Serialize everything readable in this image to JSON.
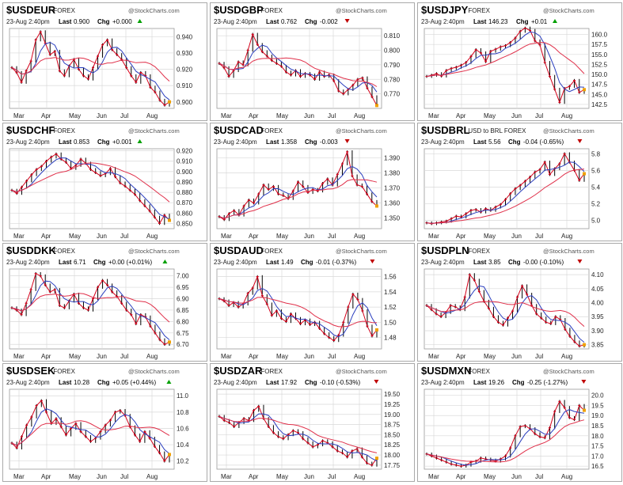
{
  "colors": {
    "price": "#d4001a",
    "ma_blue": "#2b3fbf",
    "ma_red": "#e0304a",
    "grid": "#d9d9d9",
    "tag_up": "#00a000",
    "tag_down": "#c00000",
    "ink": "#000000"
  },
  "watermark": "@StockCharts.com",
  "panels": [
    {
      "title": "$USDEUR",
      "subtitle": "FOREX",
      "date": "23-Aug 2:40pm",
      "last_label": "Last",
      "last": "0.900",
      "chg_label": "Chg",
      "chg": "+0.000",
      "dir": "up",
      "y_ticks": [
        "0.940",
        "0.930",
        "0.920",
        "0.910",
        "0.900"
      ],
      "x_ticks": [
        "Mar",
        "Apr",
        "May",
        "Jun",
        "Jul",
        "Aug"
      ],
      "chart_data": {
        "type": "line",
        "ylim": [
          0.896,
          0.945
        ],
        "values": [
          0.921,
          0.918,
          0.912,
          0.919,
          0.925,
          0.938,
          0.943,
          0.936,
          0.929,
          0.931,
          0.919,
          0.916,
          0.922,
          0.926,
          0.92,
          0.916,
          0.914,
          0.921,
          0.928,
          0.935,
          0.938,
          0.932,
          0.929,
          0.926,
          0.921,
          0.916,
          0.912,
          0.918,
          0.916,
          0.909,
          0.906,
          0.901,
          0.898,
          0.9
        ]
      }
    },
    {
      "title": "$USDGBP",
      "subtitle": "FOREX",
      "date": "23-Aug 2:40pm",
      "last_label": "Last",
      "last": "0.762",
      "chg_label": "Chg",
      "chg": "-0.002",
      "dir": "down",
      "y_ticks": [
        "0.810",
        "0.800",
        "0.790",
        "0.780",
        "0.770"
      ],
      "x_ticks": [
        "Mar",
        "Apr",
        "May",
        "Jun",
        "Jul",
        "Aug"
      ],
      "chart_data": {
        "type": "line",
        "ylim": [
          0.76,
          0.815
        ],
        "values": [
          0.791,
          0.788,
          0.782,
          0.786,
          0.792,
          0.79,
          0.8,
          0.811,
          0.804,
          0.799,
          0.796,
          0.793,
          0.791,
          0.789,
          0.785,
          0.783,
          0.786,
          0.782,
          0.784,
          0.783,
          0.78,
          0.785,
          0.782,
          0.783,
          0.779,
          0.772,
          0.77,
          0.773,
          0.776,
          0.78,
          0.781,
          0.774,
          0.768,
          0.762
        ]
      }
    },
    {
      "title": "$USDJPY",
      "subtitle": "FOREX",
      "date": "23-Aug 2:40pm",
      "last_label": "Last",
      "last": "146.23",
      "chg_label": "Chg",
      "chg": "+0.01",
      "dir": "up",
      "y_ticks": [
        "160.0",
        "157.5",
        "155.0",
        "152.5",
        "150.0",
        "147.5",
        "145.0",
        "142.5"
      ],
      "x_ticks": [
        "Mar",
        "Apr",
        "May",
        "Jun",
        "Jul",
        "Aug"
      ],
      "chart_data": {
        "type": "line",
        "ylim": [
          141.5,
          161.5
        ],
        "values": [
          149.5,
          149.8,
          150.2,
          149.6,
          151.0,
          151.5,
          151.8,
          152.3,
          153.0,
          154.5,
          156.2,
          155.4,
          153.2,
          155.8,
          156.3,
          156.9,
          157.2,
          158.0,
          159.1,
          160.8,
          161.6,
          161.0,
          158.4,
          157.4,
          153.0,
          149.5,
          146.3,
          143.0,
          146.5,
          147.0,
          148.5,
          145.5,
          146.2
        ]
      }
    },
    {
      "title": "$USDCHF",
      "subtitle": "FOREX",
      "date": "23-Aug 2:40pm",
      "last_label": "Last",
      "last": "0.853",
      "chg_label": "Chg",
      "chg": "+0.001",
      "dir": "up",
      "y_ticks": [
        "0.920",
        "0.910",
        "0.900",
        "0.890",
        "0.880",
        "0.870",
        "0.860",
        "0.850"
      ],
      "x_ticks": [
        "Mar",
        "Apr",
        "May",
        "Jun",
        "Jul",
        "Aug"
      ],
      "chart_data": {
        "type": "line",
        "ylim": [
          0.845,
          0.922
        ],
        "values": [
          0.882,
          0.879,
          0.885,
          0.891,
          0.897,
          0.902,
          0.905,
          0.91,
          0.914,
          0.917,
          0.912,
          0.909,
          0.903,
          0.906,
          0.912,
          0.908,
          0.902,
          0.899,
          0.896,
          0.898,
          0.903,
          0.895,
          0.889,
          0.886,
          0.882,
          0.878,
          0.872,
          0.867,
          0.862,
          0.856,
          0.85,
          0.858,
          0.853
        ]
      }
    },
    {
      "title": "$USDCAD",
      "subtitle": "FOREX",
      "date": "23-Aug 2:40pm",
      "last_label": "Last",
      "last": "1.358",
      "chg_label": "Chg",
      "chg": "-0.003",
      "dir": "down",
      "y_ticks": [
        "1.390",
        "1.380",
        "1.370",
        "1.360",
        "1.350"
      ],
      "x_ticks": [
        "Mar",
        "Apr",
        "May",
        "Jun",
        "Jul",
        "Aug"
      ],
      "chart_data": {
        "type": "line",
        "ylim": [
          1.343,
          1.396
        ],
        "values": [
          1.351,
          1.349,
          1.353,
          1.355,
          1.352,
          1.358,
          1.362,
          1.36,
          1.366,
          1.372,
          1.369,
          1.371,
          1.366,
          1.365,
          1.363,
          1.368,
          1.374,
          1.371,
          1.367,
          1.369,
          1.368,
          1.373,
          1.376,
          1.372,
          1.379,
          1.386,
          1.394,
          1.378,
          1.372,
          1.371,
          1.366,
          1.361,
          1.358
        ]
      }
    },
    {
      "title": "$USDBRL",
      "subtitle": "USD to BRL FOREX",
      "date": "23-Aug 2:40pm",
      "last_label": "Last",
      "last": "5.56",
      "chg_label": "Chg",
      "chg": "-0.04 (-0.65%)",
      "dir": "down",
      "y_ticks": [
        "5.8",
        "5.6",
        "5.4",
        "5.2",
        "5.0"
      ],
      "x_ticks": [
        "Mar",
        "Apr",
        "May",
        "Jun",
        "Jul",
        "Aug"
      ],
      "chart_data": {
        "type": "line",
        "ylim": [
          4.9,
          5.86
        ],
        "values": [
          4.97,
          4.96,
          4.97,
          4.98,
          4.99,
          5.02,
          5.05,
          5.04,
          5.08,
          5.12,
          5.13,
          5.1,
          5.14,
          5.12,
          5.16,
          5.19,
          5.25,
          5.32,
          5.38,
          5.42,
          5.47,
          5.52,
          5.58,
          5.61,
          5.7,
          5.55,
          5.62,
          5.68,
          5.8,
          5.7,
          5.6,
          5.48,
          5.56
        ]
      }
    },
    {
      "title": "$USDDKK",
      "subtitle": "FOREX",
      "date": "23-Aug 2:40pm",
      "last_label": "Last",
      "last": "6.71",
      "chg_label": "Chg",
      "chg": "+0.00 (+0.01%)",
      "dir": "up",
      "y_ticks": [
        "7.00",
        "6.95",
        "6.90",
        "6.85",
        "6.80",
        "6.75",
        "6.70"
      ],
      "x_ticks": [
        "Mar",
        "Apr",
        "May",
        "Jun",
        "Jul",
        "Aug"
      ],
      "chart_data": {
        "type": "line",
        "ylim": [
          6.68,
          7.03
        ],
        "values": [
          6.86,
          6.85,
          6.83,
          6.88,
          6.94,
          7.01,
          7.0,
          6.96,
          6.93,
          6.94,
          6.87,
          6.86,
          6.89,
          6.92,
          6.88,
          6.86,
          6.85,
          6.9,
          6.95,
          6.98,
          6.96,
          6.93,
          6.91,
          6.88,
          6.85,
          6.83,
          6.79,
          6.83,
          6.82,
          6.78,
          6.75,
          6.72,
          6.7,
          6.71
        ]
      }
    },
    {
      "title": "$USDAUD",
      "subtitle": "FOREX",
      "date": "23-Aug 2:40pm",
      "last_label": "Last",
      "last": "1.49",
      "chg_label": "Chg",
      "chg": "-0.01 (-0.37%)",
      "dir": "down",
      "y_ticks": [
        "1.56",
        "1.54",
        "1.52",
        "1.50",
        "1.48"
      ],
      "x_ticks": [
        "Mar",
        "Apr",
        "May",
        "Jun",
        "Jul",
        "Aug"
      ],
      "chart_data": {
        "type": "line",
        "ylim": [
          1.465,
          1.57
        ],
        "values": [
          1.531,
          1.528,
          1.522,
          1.526,
          1.52,
          1.524,
          1.538,
          1.545,
          1.56,
          1.535,
          1.524,
          1.509,
          1.515,
          1.505,
          1.501,
          1.511,
          1.505,
          1.498,
          1.503,
          1.497,
          1.5,
          1.492,
          1.485,
          1.48,
          1.476,
          1.483,
          1.5,
          1.52,
          1.537,
          1.53,
          1.515,
          1.495,
          1.482,
          1.49
        ]
      }
    },
    {
      "title": "$USDPLN",
      "subtitle": "FOREX",
      "date": "23-Aug 2:40pm",
      "last_label": "Last",
      "last": "3.85",
      "chg_label": "Chg",
      "chg": "-0.00 (-0.10%)",
      "dir": "down",
      "y_ticks": [
        "4.10",
        "4.05",
        "4.00",
        "3.95",
        "3.90",
        "3.85"
      ],
      "x_ticks": [
        "Mar",
        "Apr",
        "May",
        "Jun",
        "Jul",
        "Aug"
      ],
      "chart_data": {
        "type": "line",
        "ylim": [
          3.835,
          4.12
        ],
        "values": [
          3.99,
          3.975,
          3.96,
          3.95,
          3.965,
          3.99,
          3.985,
          3.975,
          4.02,
          4.1,
          4.08,
          4.04,
          4.005,
          3.98,
          3.95,
          3.93,
          3.92,
          3.945,
          3.97,
          4.02,
          4.06,
          4.03,
          3.99,
          3.96,
          3.945,
          3.93,
          3.925,
          3.95,
          3.94,
          3.905,
          3.88,
          3.86,
          3.845,
          3.85
        ]
      }
    },
    {
      "title": "$USDSEK",
      "subtitle": "FOREX",
      "date": "23-Aug 2:40pm",
      "last_label": "Last",
      "last": "10.28",
      "chg_label": "Chg",
      "chg": "+0.05 (+0.44%)",
      "dir": "up",
      "y_ticks": [
        "11.0",
        "10.8",
        "10.6",
        "10.4",
        "10.2"
      ],
      "x_ticks": [
        "Mar",
        "Apr",
        "May",
        "Jun",
        "Jul",
        "Aug"
      ],
      "chart_data": {
        "type": "line",
        "ylim": [
          10.1,
          11.08
        ],
        "values": [
          10.42,
          10.36,
          10.5,
          10.64,
          10.74,
          10.88,
          10.94,
          10.8,
          10.66,
          10.72,
          10.62,
          10.52,
          10.6,
          10.66,
          10.56,
          10.5,
          10.44,
          10.48,
          10.56,
          10.64,
          10.7,
          10.8,
          10.82,
          10.76,
          10.62,
          10.52,
          10.44,
          10.56,
          10.48,
          10.38,
          10.3,
          10.2,
          10.28
        ]
      }
    },
    {
      "title": "$USDZAR",
      "subtitle": "FOREX",
      "date": "23-Aug 2:40pm",
      "last_label": "Last",
      "last": "17.92",
      "chg_label": "Chg",
      "chg": "-0.10 (-0.53%)",
      "dir": "down",
      "y_ticks": [
        "19.50",
        "19.25",
        "19.00",
        "18.75",
        "18.50",
        "18.25",
        "18.00",
        "17.75"
      ],
      "x_ticks": [
        "Mar",
        "Apr",
        "May",
        "Jun",
        "Jul",
        "Aug"
      ],
      "chart_data": {
        "type": "line",
        "ylim": [
          17.65,
          19.62
        ],
        "values": [
          18.95,
          18.85,
          18.8,
          18.7,
          18.8,
          18.9,
          18.85,
          19.1,
          19.2,
          18.9,
          18.7,
          18.55,
          18.45,
          18.4,
          18.5,
          18.6,
          18.55,
          18.4,
          18.3,
          18.2,
          18.25,
          18.35,
          18.3,
          18.2,
          18.1,
          18.05,
          17.95,
          18.1,
          18.15,
          17.95,
          17.8,
          17.75,
          17.92
        ]
      }
    },
    {
      "title": "$USDMXN",
      "subtitle": "FOREX",
      "date": "23-Aug 2:40pm",
      "last_label": "Last",
      "last": "19.26",
      "chg_label": "Chg",
      "chg": "-0.25 (-1.27%)",
      "dir": "down",
      "y_ticks": [
        "20.0",
        "19.5",
        "19.0",
        "18.5",
        "18.0",
        "17.5",
        "17.0",
        "16.5"
      ],
      "x_ticks": [
        "Mar",
        "Apr",
        "May",
        "Jun",
        "Jul",
        "Aug"
      ],
      "chart_data": {
        "type": "line",
        "ylim": [
          16.35,
          20.3
        ],
        "values": [
          17.1,
          17.0,
          16.9,
          16.8,
          16.7,
          16.6,
          16.55,
          16.5,
          16.55,
          16.7,
          16.75,
          16.9,
          16.85,
          16.8,
          16.75,
          16.85,
          17.0,
          17.4,
          18.0,
          18.45,
          18.5,
          18.35,
          18.1,
          17.95,
          17.9,
          18.4,
          19.2,
          19.7,
          19.4,
          18.9,
          18.8,
          19.5,
          19.26
        ]
      }
    }
  ]
}
